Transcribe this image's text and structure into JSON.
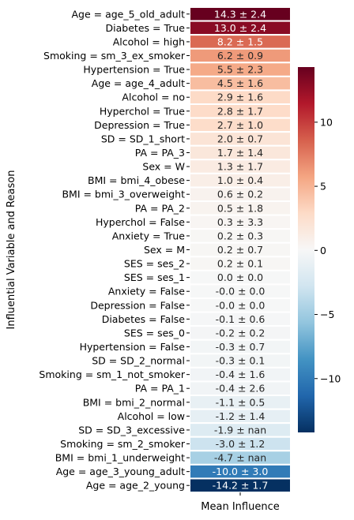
{
  "chart_data": {
    "type": "heatmap",
    "ylabel": "Influential Variable and Reason",
    "xlabel": "",
    "x_categories": [
      "Mean Influence"
    ],
    "colormap": "RdBu_r",
    "color_range": [
      -14.2,
      14.3
    ],
    "colorbar_ticks": [
      -10,
      -5,
      0,
      5,
      10
    ],
    "colorbar_tick_labels": [
      "−10",
      "−5",
      "0",
      "5",
      "10"
    ],
    "rows": [
      {
        "label": "Age = age_5_old_adult",
        "value": 14.3,
        "text": "14.3 ± 2.4"
      },
      {
        "label": "Diabetes = True",
        "value": 13.0,
        "text": "13.0 ± 2.4"
      },
      {
        "label": "Alcohol = high",
        "value": 8.2,
        "text": "8.2 ± 1.5"
      },
      {
        "label": "Smoking = sm_3_ex_smoker",
        "value": 6.2,
        "text": "6.2 ± 0.9"
      },
      {
        "label": "Hypertension = True",
        "value": 5.5,
        "text": "5.5 ± 2.3"
      },
      {
        "label": "Age = age_4_adult",
        "value": 4.5,
        "text": "4.5 ± 1.6"
      },
      {
        "label": "Alcohol = no",
        "value": 2.9,
        "text": "2.9 ± 1.6"
      },
      {
        "label": "Hyperchol = True",
        "value": 2.8,
        "text": "2.8 ± 1.7"
      },
      {
        "label": "Depression = True",
        "value": 2.7,
        "text": "2.7 ± 1.0"
      },
      {
        "label": "SD = SD_1_short",
        "value": 2.0,
        "text": "2.0 ± 0.7"
      },
      {
        "label": "PA = PA_3",
        "value": 1.7,
        "text": "1.7 ± 1.4"
      },
      {
        "label": "Sex = W",
        "value": 1.3,
        "text": "1.3 ± 1.7"
      },
      {
        "label": "BMI = bmi_4_obese",
        "value": 1.0,
        "text": "1.0 ± 0.4"
      },
      {
        "label": "BMI = bmi_3_overweight",
        "value": 0.6,
        "text": "0.6 ± 0.2"
      },
      {
        "label": "PA = PA_2",
        "value": 0.5,
        "text": "0.5 ± 1.8"
      },
      {
        "label": "Hyperchol = False",
        "value": 0.3,
        "text": "0.3 ± 3.3"
      },
      {
        "label": "Anxiety = True",
        "value": 0.2,
        "text": "0.2 ± 0.3"
      },
      {
        "label": "Sex = M",
        "value": 0.2,
        "text": "0.2 ± 0.7"
      },
      {
        "label": "SES = ses_2",
        "value": 0.2,
        "text": "0.2 ± 0.1"
      },
      {
        "label": "SES = ses_1",
        "value": 0.0,
        "text": "0.0 ± 0.0"
      },
      {
        "label": "Anxiety = False",
        "value": -0.0,
        "text": "-0.0 ± 0.0"
      },
      {
        "label": "Depression = False",
        "value": -0.0,
        "text": "-0.0 ± 0.0"
      },
      {
        "label": "Diabetes = False",
        "value": -0.1,
        "text": "-0.1 ± 0.6"
      },
      {
        "label": "SES = ses_0",
        "value": -0.2,
        "text": "-0.2 ± 0.2"
      },
      {
        "label": "Hypertension = False",
        "value": -0.3,
        "text": "-0.3 ± 0.7"
      },
      {
        "label": "SD = SD_2_normal",
        "value": -0.3,
        "text": "-0.3 ± 0.1"
      },
      {
        "label": "Smoking = sm_1_not_smoker",
        "value": -0.4,
        "text": "-0.4 ± 1.6"
      },
      {
        "label": "PA = PA_1",
        "value": -0.4,
        "text": "-0.4 ± 2.6"
      },
      {
        "label": "BMI = bmi_2_normal",
        "value": -1.1,
        "text": "-1.1 ± 0.5"
      },
      {
        "label": "Alcohol = low",
        "value": -1.2,
        "text": "-1.2 ± 1.4"
      },
      {
        "label": "SD = SD_3_excessive",
        "value": -1.9,
        "text": "-1.9 ± nan"
      },
      {
        "label": "Smoking = sm_2_smoker",
        "value": -3.0,
        "text": "-3.0 ± 1.2"
      },
      {
        "label": "BMI = bmi_1_underweight",
        "value": -4.7,
        "text": "-4.7 ± nan"
      },
      {
        "label": "Age = age_3_young_adult",
        "value": -10.0,
        "text": "-10.0 ± 3.0"
      },
      {
        "label": "Age = age_2_young",
        "value": -14.2,
        "text": "-14.2 ± 1.7"
      }
    ]
  }
}
